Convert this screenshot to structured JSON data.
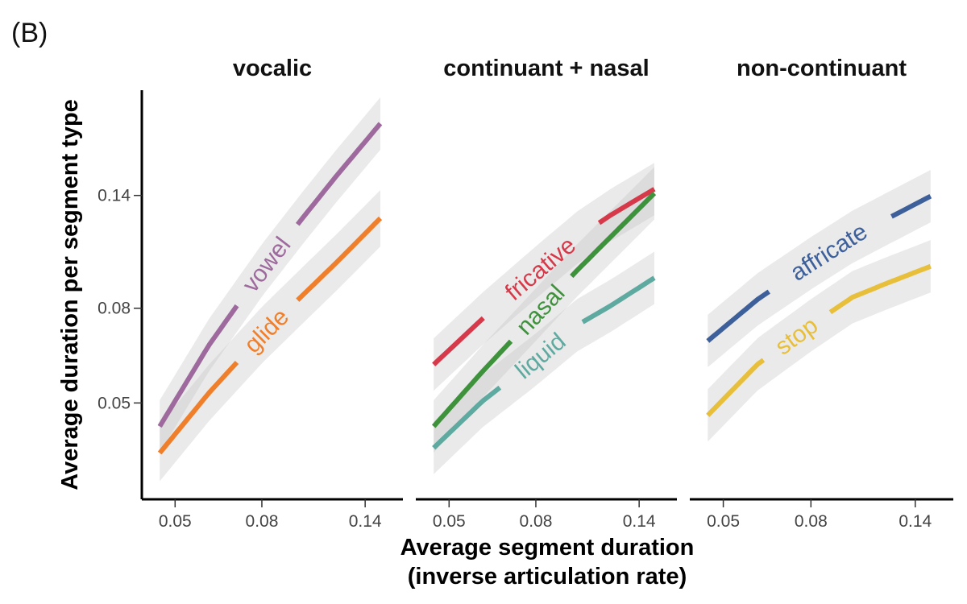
{
  "panel_label": "(B)",
  "chart_data": {
    "type": "line",
    "xlabel": [
      "Average segment duration",
      "(inverse articulation rate)"
    ],
    "ylabel": "Average duration per segment type",
    "xscale": "log",
    "yscale": "log",
    "xlim": [
      0.044,
      0.163
    ],
    "ylim": [
      0.031,
      0.236
    ],
    "x_ticks": [
      0.05,
      0.08,
      0.14
    ],
    "x_tick_labels": [
      "0.05",
      "0.08",
      "0.14"
    ],
    "y_ticks": [
      0.05,
      0.08,
      0.14
    ],
    "y_tick_labels": [
      "0.05",
      "0.08",
      "0.14"
    ],
    "grid": false,
    "legend": "none (direct labels on lines)",
    "facets": [
      {
        "title": "vocalic",
        "series": [
          {
            "name": "vowel",
            "color": "#9e6a9e",
            "x": [
              0.046,
              0.06,
              0.08,
              0.1,
              0.12,
              0.152
            ],
            "y": [
              0.0445,
              0.0665,
              0.0965,
              0.1255,
              0.1545,
              0.2
            ],
            "ci_halfwidth": 0.13
          },
          {
            "name": "glide",
            "color": "#f07f2c",
            "x": [
              0.046,
              0.06,
              0.08,
              0.1,
              0.12,
              0.152
            ],
            "y": [
              0.039,
              0.0525,
              0.07,
              0.0855,
              0.1005,
              0.125
            ],
            "ci_halfwidth": 0.14
          }
        ]
      },
      {
        "title": "continuant + nasal",
        "series": [
          {
            "name": "fricative",
            "color": "#d63a4a",
            "x": [
              0.046,
              0.06,
              0.08,
              0.1,
              0.12,
              0.152
            ],
            "y": [
              0.0605,
              0.076,
              0.0955,
              0.1135,
              0.127,
              0.1445
            ],
            "ci_halfwidth": 0.13
          },
          {
            "name": "nasal",
            "color": "#3f923c",
            "x": [
              0.046,
              0.06,
              0.08,
              0.1,
              0.12,
              0.152
            ],
            "y": [
              0.0445,
              0.0585,
              0.0775,
              0.0965,
              0.114,
              0.1415
            ],
            "ci_halfwidth": 0.13
          },
          {
            "name": "liquid",
            "color": "#5eaaa0",
            "x": [
              0.046,
              0.06,
              0.08,
              0.1,
              0.12,
              0.152
            ],
            "y": [
              0.04,
              0.0505,
              0.062,
              0.0735,
              0.081,
              0.093
            ],
            "ci_halfwidth": 0.13
          }
        ]
      },
      {
        "title": "non-continuant",
        "series": [
          {
            "name": "affricate",
            "color": "#3d5f9a",
            "x": [
              0.046,
              0.06,
              0.08,
              0.1,
              0.12,
              0.152
            ],
            "y": [
              0.068,
              0.0835,
              0.1,
              0.114,
              0.1245,
              0.1395
            ],
            "ci_halfwidth": 0.13
          },
          {
            "name": "stop",
            "color": "#e8bf3a",
            "x": [
              0.046,
              0.06,
              0.08,
              0.1,
              0.12,
              0.152
            ],
            "y": [
              0.047,
              0.0605,
              0.0735,
              0.0845,
              0.0905,
              0.0985
            ],
            "ci_halfwidth": 0.13
          }
        ]
      }
    ]
  }
}
